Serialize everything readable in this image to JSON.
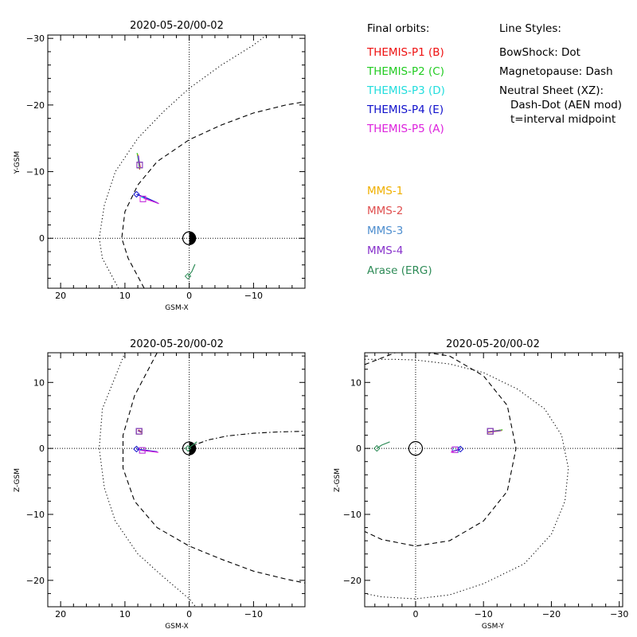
{
  "chart_data": [
    {
      "type": "scatter",
      "title": "2020-05-20/00-02",
      "xlabel": "GSM-X",
      "ylabel": "Y-GSM",
      "xlim": [
        22,
        -18
      ],
      "ylim": [
        7.5,
        -30.5
      ],
      "xticks": [
        20,
        10,
        0,
        -10
      ],
      "yticks": [
        0,
        -10,
        -20,
        -30
      ],
      "grid": false,
      "earth": {
        "center": [
          0,
          0
        ],
        "radius": 1,
        "night_side": "negative-x"
      },
      "boundaries": [
        {
          "name": "BowShock",
          "style": "dot",
          "points": [
            [
              11,
              7.5
            ],
            [
              13.5,
              3
            ],
            [
              14,
              0
            ],
            [
              13.2,
              -5
            ],
            [
              11.5,
              -10
            ],
            [
              8,
              -15
            ],
            [
              4,
              -19
            ],
            [
              0,
              -22.5
            ],
            [
              -5,
              -26
            ],
            [
              -10,
              -29
            ],
            [
              -12,
              -30.5
            ]
          ]
        },
        {
          "name": "Magnetopause",
          "style": "dash",
          "points": [
            [
              7,
              7.5
            ],
            [
              9.5,
              3
            ],
            [
              10.5,
              0
            ],
            [
              10,
              -4
            ],
            [
              8,
              -8
            ],
            [
              5,
              -11.5
            ],
            [
              0,
              -14.8
            ],
            [
              -5,
              -17
            ],
            [
              -10,
              -18.8
            ],
            [
              -15,
              -20
            ],
            [
              -18,
              -20.5
            ]
          ]
        }
      ],
      "spacecraft": [
        {
          "name": "THEMIS-P1",
          "color": "#ee1111",
          "track": [
            [
              7.7,
              -10.3
            ],
            [
              7.9,
              -11.6
            ]
          ],
          "marker": "square",
          "end": [
            7.7,
            -11.0
          ]
        },
        {
          "name": "THEMIS-P2",
          "color": "#22cc22",
          "track": [
            [
              7.7,
              -10.4
            ],
            [
              8.1,
              -12.8
            ]
          ],
          "marker": "square",
          "end": [
            7.7,
            -11.0
          ]
        },
        {
          "name": "THEMIS-P3",
          "color": "#22dddd",
          "track": [
            [
              4.8,
              -5.2
            ],
            [
              6.5,
              -5.9
            ],
            [
              7.5,
              -6.2
            ]
          ],
          "marker": "square",
          "end": [
            7.2,
            -5.9
          ]
        },
        {
          "name": "THEMIS-P4",
          "color": "#1111cc",
          "track": [
            [
              4.9,
              -5.3
            ],
            [
              6.5,
              -6.0
            ],
            [
              8.2,
              -6.6
            ]
          ],
          "marker": "diamond",
          "end": [
            8.2,
            -6.6
          ]
        },
        {
          "name": "THEMIS-P5",
          "color": "#dd22dd",
          "track": [
            [
              4.7,
              -5.2
            ],
            [
              6.2,
              -5.7
            ],
            [
              7.1,
              -6.0
            ]
          ],
          "marker": "square",
          "end": [
            7.2,
            -5.9
          ]
        },
        {
          "name": "MMS-1",
          "color": "#f0b000",
          "track": [
            [
              7.6,
              -10.6
            ],
            [
              8.0,
              -12.6
            ]
          ],
          "marker": "square",
          "end": [
            7.7,
            -11.0
          ]
        },
        {
          "name": "MMS-2",
          "color": "#e05050",
          "track": [
            [
              7.6,
              -10.7
            ],
            [
              8.0,
              -12.5
            ]
          ],
          "marker": "square",
          "end": [
            7.7,
            -11.0
          ]
        },
        {
          "name": "MMS-3",
          "color": "#4f8fcf",
          "track": [
            [
              7.7,
              -10.8
            ],
            [
              8.0,
              -12.4
            ]
          ],
          "marker": "square",
          "end": [
            7.7,
            -11.0
          ]
        },
        {
          "name": "MMS-4",
          "color": "#8833cc",
          "track": [
            [
              7.7,
              -10.8
            ],
            [
              7.9,
              -12.4
            ]
          ],
          "marker": "square",
          "end": [
            7.7,
            -11.0
          ]
        },
        {
          "name": "Arase (ERG)",
          "color": "#2e8b57",
          "track": [
            [
              0.2,
              5.7
            ],
            [
              -0.4,
              5.0
            ],
            [
              -0.9,
              3.9
            ]
          ],
          "marker": "diamond",
          "end": [
            0.2,
            5.7
          ]
        }
      ]
    },
    {
      "type": "scatter",
      "title": "2020-05-20/00-02",
      "xlabel": "GSM-X",
      "ylabel": "Z-GSM",
      "xlim": [
        22,
        -18
      ],
      "ylim": [
        -24,
        14.5
      ],
      "xticks": [
        20,
        10,
        0,
        -10
      ],
      "yticks": [
        10,
        0,
        -10,
        -20
      ],
      "grid": false,
      "earth": {
        "center": [
          0,
          0
        ],
        "radius": 1,
        "night_side": "negative-x"
      },
      "boundaries": [
        {
          "name": "BowShock",
          "style": "dot",
          "points": [
            [
              10,
              14.5
            ],
            [
              13.5,
              6
            ],
            [
              14,
              0
            ],
            [
              13.2,
              -6
            ],
            [
              11.5,
              -11
            ],
            [
              8,
              -16
            ],
            [
              4,
              -19.5
            ],
            [
              0,
              -22.8
            ],
            [
              -1,
              -24
            ]
          ]
        },
        {
          "name": "Magnetopause",
          "style": "dash",
          "points": [
            [
              5,
              14.5
            ],
            [
              8.5,
              8
            ],
            [
              10.3,
              2
            ],
            [
              10.3,
              -3
            ],
            [
              8.5,
              -8
            ],
            [
              5,
              -12
            ],
            [
              0,
              -14.8
            ],
            [
              -5,
              -16.8
            ],
            [
              -10,
              -18.6
            ],
            [
              -15,
              -19.8
            ],
            [
              -18,
              -20.4
            ]
          ]
        },
        {
          "name": "Neutral Sheet",
          "style": "dash-dot",
          "points": [
            [
              0,
              0
            ],
            [
              -1,
              0.6
            ],
            [
              -3,
              1.3
            ],
            [
              -6,
              1.9
            ],
            [
              -10,
              2.3
            ],
            [
              -14,
              2.5
            ],
            [
              -18,
              2.6
            ]
          ]
        }
      ],
      "spacecraft": [
        {
          "name": "THEMIS-P1",
          "color": "#ee1111",
          "track": [
            [
              7.4,
              2.5
            ],
            [
              7.9,
              2.8
            ]
          ],
          "marker": "square",
          "end": [
            7.8,
            2.6
          ]
        },
        {
          "name": "THEMIS-P2",
          "color": "#22cc22",
          "track": [
            [
              7.4,
              2.5
            ],
            [
              7.9,
              2.7
            ]
          ],
          "marker": "square",
          "end": [
            7.8,
            2.6
          ]
        },
        {
          "name": "THEMIS-P3",
          "color": "#22dddd",
          "track": [
            [
              5.0,
              -0.5
            ],
            [
              6.5,
              -0.4
            ],
            [
              7.6,
              -0.3
            ]
          ],
          "marker": "square",
          "end": [
            7.3,
            -0.3
          ]
        },
        {
          "name": "THEMIS-P4",
          "color": "#1111cc",
          "track": [
            [
              5.0,
              -0.5
            ],
            [
              6.6,
              -0.3
            ],
            [
              8.2,
              -0.1
            ]
          ],
          "marker": "diamond",
          "end": [
            8.2,
            -0.1
          ]
        },
        {
          "name": "THEMIS-P5",
          "color": "#dd22dd",
          "track": [
            [
              4.8,
              -0.6
            ],
            [
              6.4,
              -0.4
            ],
            [
              7.5,
              -0.3
            ]
          ],
          "marker": "square",
          "end": [
            7.3,
            -0.3
          ]
        },
        {
          "name": "MMS-1",
          "color": "#f0b000",
          "track": [
            [
              7.4,
              2.4
            ],
            [
              8.0,
              2.7
            ]
          ],
          "marker": "square",
          "end": [
            7.8,
            2.6
          ]
        },
        {
          "name": "MMS-2",
          "color": "#e05050",
          "track": [
            [
              7.5,
              2.4
            ],
            [
              8.0,
              2.7
            ]
          ],
          "marker": "square",
          "end": [
            7.8,
            2.6
          ]
        },
        {
          "name": "MMS-3",
          "color": "#4f8fcf",
          "track": [
            [
              7.5,
              2.5
            ],
            [
              8.0,
              2.7
            ]
          ],
          "marker": "square",
          "end": [
            7.8,
            2.6
          ]
        },
        {
          "name": "MMS-4",
          "color": "#8833cc",
          "track": [
            [
              7.5,
              2.5
            ],
            [
              8.0,
              2.7
            ]
          ],
          "marker": "square",
          "end": [
            7.8,
            2.6
          ]
        },
        {
          "name": "Arase (ERG)",
          "color": "#2e8b57",
          "track": [
            [
              0.2,
              0.0
            ],
            [
              -0.4,
              0.4
            ],
            [
              -1.2,
              1.0
            ]
          ],
          "marker": "diamond",
          "end": [
            0.2,
            0.0
          ]
        }
      ]
    },
    {
      "type": "scatter",
      "title": "2020-05-20/00-02",
      "xlabel": "GSM-Y",
      "ylabel": "Z-GSM",
      "xlim": [
        7.5,
        -30.5
      ],
      "ylim": [
        -24,
        14.5
      ],
      "xticks": [
        0,
        -10,
        -20,
        -30
      ],
      "yticks": [
        10,
        0,
        -10,
        -20
      ],
      "grid": false,
      "earth": {
        "center": [
          0,
          0
        ],
        "radius": 1,
        "night_side": "none"
      },
      "boundaries": [
        {
          "name": "BowShock",
          "style": "dot",
          "points": [
            [
              7.5,
              13.5
            ],
            [
              3,
              13.5
            ],
            [
              0,
              13.4
            ],
            [
              -5,
              12.8
            ],
            [
              -10,
              11.5
            ],
            [
              -15,
              9
            ],
            [
              -19,
              6
            ],
            [
              -21.5,
              2
            ],
            [
              -22.5,
              -3
            ],
            [
              -22,
              -8
            ],
            [
              -20,
              -13
            ],
            [
              -16,
              -17.5
            ],
            [
              -10,
              -20.5
            ],
            [
              -5,
              -22.2
            ],
            [
              0,
              -22.8
            ],
            [
              5,
              -22.5
            ],
            [
              7.5,
              -22
            ]
          ]
        },
        {
          "name": "Magnetopause",
          "style": "dash",
          "points": [
            [
              7.5,
              12.7
            ],
            [
              3,
              14.5
            ],
            [
              0,
              14.8
            ],
            [
              -5,
              14
            ],
            [
              -10,
              11
            ],
            [
              -13.5,
              6.5
            ],
            [
              -14.8,
              0
            ],
            [
              -13.5,
              -6.5
            ],
            [
              -10,
              -11
            ],
            [
              -5,
              -14
            ],
            [
              0,
              -14.8
            ],
            [
              5,
              -13.8
            ],
            [
              7.5,
              -12.6
            ]
          ]
        }
      ],
      "spacecraft": [
        {
          "name": "THEMIS-P1",
          "color": "#ee1111",
          "track": [
            [
              -10.6,
              2.5
            ],
            [
              -12.8,
              2.8
            ]
          ],
          "marker": "square",
          "end": [
            -11.0,
            2.6
          ]
        },
        {
          "name": "THEMIS-P2",
          "color": "#22cc22",
          "track": [
            [
              -10.6,
              2.5
            ],
            [
              -12.8,
              2.8
            ]
          ],
          "marker": "square",
          "end": [
            -11.0,
            2.6
          ]
        },
        {
          "name": "THEMIS-P3",
          "color": "#22dddd",
          "track": [
            [
              -5.3,
              -0.5
            ],
            [
              -6.0,
              -0.2
            ]
          ],
          "marker": "square",
          "end": [
            -5.9,
            -0.2
          ]
        },
        {
          "name": "THEMIS-P4",
          "color": "#1111cc",
          "track": [
            [
              -5.3,
              -0.5
            ],
            [
              -6.6,
              -0.1
            ]
          ],
          "marker": "diamond",
          "end": [
            -6.6,
            -0.1
          ]
        },
        {
          "name": "THEMIS-P5",
          "color": "#dd22dd",
          "track": [
            [
              -5.2,
              -0.6
            ],
            [
              -5.9,
              -0.3
            ]
          ],
          "marker": "square",
          "end": [
            -5.8,
            -0.2
          ]
        },
        {
          "name": "MMS-1",
          "color": "#f0b000",
          "track": [
            [
              -10.6,
              2.4
            ],
            [
              -12.7,
              2.7
            ]
          ],
          "marker": "square",
          "end": [
            -11.0,
            2.6
          ]
        },
        {
          "name": "MMS-2",
          "color": "#e05050",
          "track": [
            [
              -10.6,
              2.5
            ],
            [
              -12.6,
              2.7
            ]
          ],
          "marker": "square",
          "end": [
            -11.0,
            2.6
          ]
        },
        {
          "name": "MMS-3",
          "color": "#4f8fcf",
          "track": [
            [
              -10.7,
              2.5
            ],
            [
              -12.6,
              2.7
            ]
          ],
          "marker": "square",
          "end": [
            -11.0,
            2.6
          ]
        },
        {
          "name": "MMS-4",
          "color": "#8833cc",
          "track": [
            [
              -10.7,
              2.5
            ],
            [
              -12.6,
              2.7
            ]
          ],
          "marker": "square",
          "end": [
            -11.0,
            2.6
          ]
        },
        {
          "name": "Arase (ERG)",
          "color": "#2e8b57",
          "track": [
            [
              5.7,
              0.0
            ],
            [
              5.0,
              0.5
            ],
            [
              3.8,
              1.0
            ]
          ],
          "marker": "diamond",
          "end": [
            5.7,
            0.0
          ]
        }
      ]
    }
  ],
  "legend": {
    "final_orbits_header": "Final orbits:",
    "line_styles_header": "Line Styles:",
    "line_styles": [
      "BowShock: Dot",
      "Magnetopause: Dash",
      "Neutral Sheet (XZ):",
      "Dash-Dot (AEN mod)",
      "t=interval midpoint"
    ],
    "themis": [
      {
        "label": "THEMIS-P1 (B)",
        "color": "#ee1111"
      },
      {
        "label": "THEMIS-P2 (C)",
        "color": "#22cc22"
      },
      {
        "label": "THEMIS-P3 (D)",
        "color": "#22dddd"
      },
      {
        "label": "THEMIS-P4 (E)",
        "color": "#1111cc"
      },
      {
        "label": "THEMIS-P5 (A)",
        "color": "#dd22dd"
      }
    ],
    "others": [
      {
        "label": "MMS-1",
        "color": "#f0b000"
      },
      {
        "label": "MMS-2",
        "color": "#e05050"
      },
      {
        "label": "MMS-3",
        "color": "#4f8fcf"
      },
      {
        "label": "MMS-4",
        "color": "#8833cc"
      },
      {
        "label": "Arase (ERG)",
        "color": "#2e8b57"
      }
    ]
  }
}
